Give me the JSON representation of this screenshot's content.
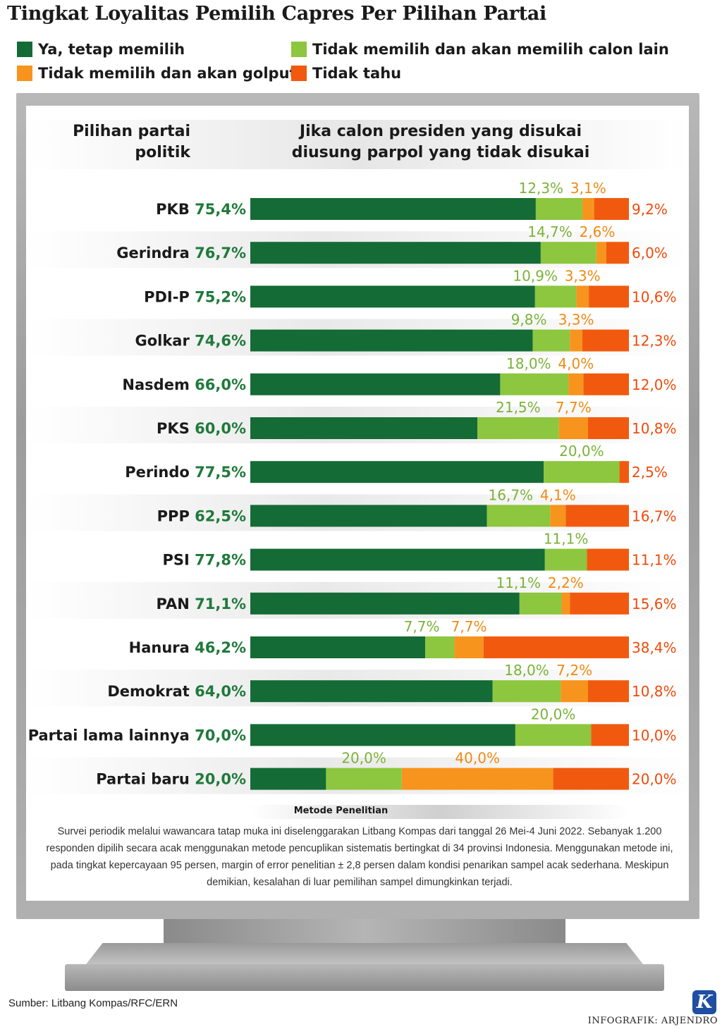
{
  "title": "Tingkat Loyalitas Pemilih Capres Per Pilihan Partai",
  "colors": {
    "ya": "#146b36",
    "calon_lain": "#8dc63f",
    "golput": "#f7941d",
    "tidak_tahu": "#f15a0e",
    "label_green": "#1f7a3a"
  },
  "legend": [
    {
      "key": "ya",
      "label": "Ya, tetap memilih"
    },
    {
      "key": "calon_lain",
      "label": "Tidak memilih dan akan memilih calon lain"
    },
    {
      "key": "golput",
      "label": "Tidak memilih dan akan golput"
    },
    {
      "key": "tidak_tahu",
      "label": "Tidak tahu"
    }
  ],
  "headers": {
    "left_line1": "Pilihan partai",
    "left_line2": "politik",
    "right_line1": "Jika calon presiden yang disukai",
    "right_line2": "diusung  parpol yang tidak disukai"
  },
  "chart_data": {
    "type": "bar",
    "stacked": true,
    "orientation": "horizontal",
    "unit": "%",
    "xlim": [
      0,
      100
    ],
    "categories": [
      "PKB",
      "Gerindra",
      "PDI-P",
      "Golkar",
      "Nasdem",
      "PKS",
      "Perindo",
      "PPP",
      "PSI",
      "PAN",
      "Hanura",
      "Demokrat",
      "Partai lama lainnya",
      "Partai baru"
    ],
    "series": [
      {
        "name": "Ya, tetap memilih",
        "key": "ya",
        "values": [
          75.4,
          76.7,
          75.2,
          74.6,
          66.0,
          60.0,
          77.5,
          62.5,
          77.8,
          71.1,
          46.2,
          64.0,
          70.0,
          20.0
        ],
        "labels": [
          "75,4%",
          "76,7%",
          "75,2%",
          "74,6%",
          "66,0%",
          "60,0%",
          "77,5%",
          "62,5%",
          "77,8%",
          "71,1%",
          "46,2%",
          "64,0%",
          "70,0%",
          "20,0%"
        ]
      },
      {
        "name": "Tidak memilih dan akan memilih calon lain",
        "key": "calon_lain",
        "values": [
          12.3,
          14.7,
          10.9,
          9.8,
          18.0,
          21.5,
          20.0,
          16.7,
          11.1,
          11.1,
          7.7,
          18.0,
          20.0,
          20.0
        ],
        "labels": [
          "12,3%",
          "14,7%",
          "10,9%",
          "9,8%",
          "18,0%",
          "21,5%",
          "20,0%",
          "16,7%",
          "11,1%",
          "11,1%",
          "7,7%",
          "18,0%",
          "20,0%",
          "20,0%"
        ]
      },
      {
        "name": "Tidak memilih dan akan golput",
        "key": "golput",
        "values": [
          3.1,
          2.6,
          3.3,
          3.3,
          4.0,
          7.7,
          0,
          4.1,
          0,
          2.2,
          7.7,
          7.2,
          0,
          40.0
        ],
        "labels": [
          "3,1%",
          "2,6%",
          "3,3%",
          "3,3%",
          "4,0%",
          "7,7%",
          "",
          "4,1%",
          "",
          "2,2%",
          "7,7%",
          "7,2%",
          "",
          "40,0%"
        ]
      },
      {
        "name": "Tidak tahu",
        "key": "tidak_tahu",
        "values": [
          9.2,
          6.0,
          10.6,
          12.3,
          12.0,
          10.8,
          2.5,
          16.7,
          11.1,
          15.6,
          38.4,
          10.8,
          10.0,
          20.0
        ],
        "labels": [
          "9,2%",
          "6,0%",
          "10,6%",
          "12,3%",
          "12,0%",
          "10,8%",
          "2,5%",
          "16,7%",
          "11,1%",
          "15,6%",
          "38,4%",
          "10,8%",
          "10,0%",
          "20,0%"
        ]
      }
    ]
  },
  "methodology": {
    "title": "Metode Penelitian",
    "text": "Survei periodik melalui wawancara tatap muka ini diselenggarakan Litbang Kompas dari tanggal 26 Mei-4 Juni 2022. Sebanyak 1.200 responden dipilih secara acak menggunakan metode pencuplikan sistematis bertingkat di 34 provinsi Indonesia. Menggunakan metode ini, pada tingkat kepercayaan 95 persen, margin of error penelitian ± 2,8 persen dalam kondisi penarikan sampel acak sederhana. Meskipun demikian, kesalahan di luar pemilihan sampel dimungkinkan terjadi."
  },
  "source": "Sumber: Litbang Kompas/RFC/ERN",
  "logo_letter": "K",
  "credit": "INFOGRAFIK: ARJENDRO"
}
